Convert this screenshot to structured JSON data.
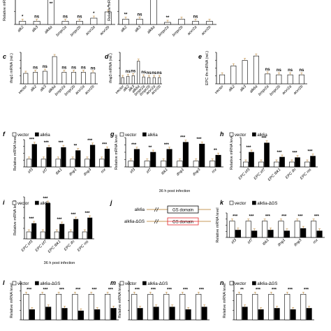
{
  "chart_data": [
    {
      "id": "a1",
      "type": "bar",
      "ylabel": "Relative mR",
      "categories": [
        "alk2",
        "alk3",
        "alk6a",
        "bmpr2a",
        "bmpr2b",
        "acvr2a",
        "acvr2b"
      ],
      "series": [
        {
          "values": [
            0.3,
            0.3,
            4.5,
            0.3,
            0.3,
            0.6,
            1.2
          ]
        }
      ],
      "sig": [
        "*",
        "ns",
        "**",
        "ns",
        "ns",
        "*",
        "*"
      ]
    },
    {
      "id": "a2",
      "type": "bar",
      "ylabel": "Relative mR",
      "categories": [
        "alk2",
        "alk3",
        "alk6a",
        "bmpr2a",
        "bmpr2b",
        "acvr2a",
        "acvr2b"
      ],
      "series": [
        {
          "values": [
            0.5,
            0.5,
            5,
            0.2,
            0.5,
            0.3,
            0.3
          ]
        }
      ],
      "sig": [
        "**",
        "ns",
        "",
        "**",
        "",
        "ns",
        ""
      ]
    },
    {
      "id": "c",
      "panel": "c",
      "type": "bar",
      "ylabel": "ifnφ1 mRNA (rel.)",
      "categories": [
        "vector",
        "alk2",
        "alk3",
        "alk6a",
        "bmpr2a",
        "bmpr2b",
        "acvr2a",
        "acvr2b"
      ],
      "series": [
        {
          "values": [
            1.0,
            1.1,
            1.2,
            2.6,
            1.1,
            1.1,
            1.1,
            1.05
          ]
        }
      ],
      "sig": [
        "",
        "ns",
        "ns",
        "",
        "ns",
        "ns",
        "ns",
        "ns"
      ]
    },
    {
      "id": "d",
      "panel": "d",
      "type": "bar",
      "ylabel": "ifnφ3 mRNA (rel.)",
      "categories": [
        "vector",
        "alk2",
        "alk3",
        "alk6a",
        "bmpr2a",
        "bmpr2b",
        "acvr2a",
        "acvr2b"
      ],
      "series": [
        {
          "values": [
            1.0,
            1.2,
            1.3,
            3.6,
            1.1,
            1.0,
            1.0,
            1.0
          ]
        }
      ],
      "sig": [
        "",
        "ns",
        "ns",
        "",
        "ns",
        "ns",
        "ns",
        "ns"
      ]
    },
    {
      "id": "e",
      "panel": "e",
      "type": "bar",
      "ylabel": "EPC ifn mRNA (rel.)",
      "categories": [
        "vector",
        "alk2",
        "alk3",
        "alk6a",
        "bmpr2a",
        "bmpr2b",
        "acvr2a",
        "acvr2b"
      ],
      "series": [
        {
          "values": [
            1.0,
            2.0,
            2.6,
            3.1,
            1.1,
            1.0,
            1.0,
            1.0
          ]
        }
      ],
      "sig": [
        "",
        "",
        "",
        "",
        "ns",
        "ns",
        "ns",
        "ns"
      ]
    },
    {
      "id": "f",
      "panel": "f",
      "type": "bar",
      "ylabel": "Relative mRNA level",
      "legend": [
        "vector",
        "alk6a"
      ],
      "categories": [
        "irf3",
        "irf7",
        "tbk1",
        "ifnφ1",
        "ifnφ3",
        "mx"
      ],
      "series": [
        {
          "name": "vector",
          "values": [
            1,
            1,
            1,
            1,
            1,
            1
          ]
        },
        {
          "name": "alk6a",
          "values": [
            2.9,
            2.5,
            2.5,
            2.1,
            2.8,
            2.3
          ]
        }
      ],
      "sig": [
        "***",
        "***",
        "***",
        "**",
        "***",
        "***"
      ]
    },
    {
      "id": "g",
      "panel": "g",
      "type": "bar",
      "ylabel": "Relative mRNA level",
      "xlabel": "36 h post infection",
      "legend": [
        "vector",
        "alk6a"
      ],
      "categories": [
        "irf3",
        "irf7",
        "tbk1",
        "ifnφ1",
        "ifnφ3",
        "mx"
      ],
      "series": [
        {
          "name": "vector",
          "values": [
            1,
            1,
            1,
            1,
            1,
            1
          ]
        },
        {
          "name": "alk6a",
          "values": [
            3.0,
            2.5,
            3.0,
            4.2,
            3.9,
            2.0
          ]
        }
      ],
      "sig": [
        "***",
        "**",
        "***",
        "***",
        "***",
        "**"
      ]
    },
    {
      "id": "h",
      "panel": "h",
      "type": "bar",
      "ylabel": "Relative mRNA level",
      "legend": [
        "vector",
        "alk6a"
      ],
      "categories": [
        "EPC irf3",
        "EPC irf7",
        "EPC tbk1",
        "EPC ifn",
        "EPC mx"
      ],
      "series": [
        {
          "name": "vector",
          "values": [
            1,
            1,
            1,
            1,
            1
          ]
        },
        {
          "name": "alk6a",
          "values": [
            3.0,
            4.9,
            2.0,
            1.9,
            2.2
          ]
        }
      ],
      "sig": [
        "***",
        "***",
        "***",
        "***",
        "***"
      ]
    },
    {
      "id": "i",
      "panel": "i",
      "type": "bar",
      "ylabel": "Relative mRNA level",
      "xlabel": "36 h post infection",
      "legend": [
        "vector",
        "alk6a"
      ],
      "categories": [
        "EPC irf3",
        "EPC irf7",
        "EPC tbk1",
        "EPC ifn",
        "EPC mx"
      ],
      "series": [
        {
          "name": "vector",
          "values": [
            1,
            1,
            1,
            1,
            1
          ]
        },
        {
          "name": "alk6a",
          "values": [
            2.2,
            5.1,
            2.1,
            2.8,
            3.0
          ]
        }
      ],
      "sig": [
        "***",
        "***",
        "***",
        "***",
        "***"
      ]
    },
    {
      "id": "k",
      "panel": "k",
      "type": "bar",
      "ylabel": "Relative mRNA level",
      "legend": [
        "vector",
        "alk6a-ΔGS"
      ],
      "categories": [
        "irf3",
        "irf7",
        "tbk1",
        "ifnφ1",
        "ifnφ3",
        "mx"
      ],
      "series": [
        {
          "name": "vector",
          "values": [
            1,
            1,
            1,
            1,
            1,
            1
          ]
        },
        {
          "name": "alk6a-ΔGS",
          "values": [
            0.45,
            0.4,
            0.45,
            0.4,
            0.55,
            0.4
          ]
        }
      ],
      "sig": [
        "***",
        "***",
        "***",
        "***",
        "***",
        "***"
      ]
    },
    {
      "id": "l",
      "panel": "l",
      "type": "bar",
      "ylabel": "Relative mRNA level",
      "legend": [
        "vector",
        "alk6a-ΔGS"
      ],
      "series": [
        {
          "name": "vector",
          "values": [
            1,
            1,
            1,
            1,
            1,
            1
          ]
        },
        {
          "name": "alk6a-ΔGS",
          "values": [
            0.4,
            0.5,
            0.45,
            0.35,
            0.4,
            0.45
          ]
        }
      ],
      "sig": [
        "***",
        "***",
        "***",
        "***",
        "***",
        "***"
      ]
    },
    {
      "id": "m",
      "panel": "m",
      "type": "bar",
      "ylabel": "Relative mRNA level",
      "legend": [
        "vector",
        "alk6a-ΔGS"
      ],
      "series": [
        {
          "name": "vector",
          "values": [
            1,
            1,
            1,
            1,
            1
          ]
        },
        {
          "name": "alk6a-ΔGS",
          "values": [
            0.45,
            0.5,
            0.5,
            0.4,
            0.5
          ]
        }
      ],
      "sig": [
        "***",
        "***",
        "***",
        "***",
        "***"
      ]
    },
    {
      "id": "n",
      "panel": "n",
      "type": "bar",
      "ylabel": "Relative mRNA level",
      "legend": [
        "vector",
        "alk6a-ΔGS"
      ],
      "series": [
        {
          "name": "vector",
          "values": [
            1,
            1,
            1,
            1,
            1
          ]
        },
        {
          "name": "alk6a-ΔGS",
          "values": [
            0.5,
            0.4,
            0.45,
            0.4,
            0.45
          ]
        }
      ],
      "sig": [
        "**",
        "***",
        "***",
        "***",
        "***"
      ]
    }
  ],
  "diagram_j": {
    "panel": "j",
    "constructs": [
      {
        "name": "alk6a",
        "domain": "GS domain",
        "deleted": false
      },
      {
        "name": "alk6a-ΔGS",
        "domain": "GS domain",
        "deleted": true
      }
    ]
  },
  "colors": {
    "vector": "#ffffff",
    "treatment": "#000000",
    "single": "#ffffff",
    "deletion": "#e4262b",
    "connector": "#c79a5a"
  }
}
